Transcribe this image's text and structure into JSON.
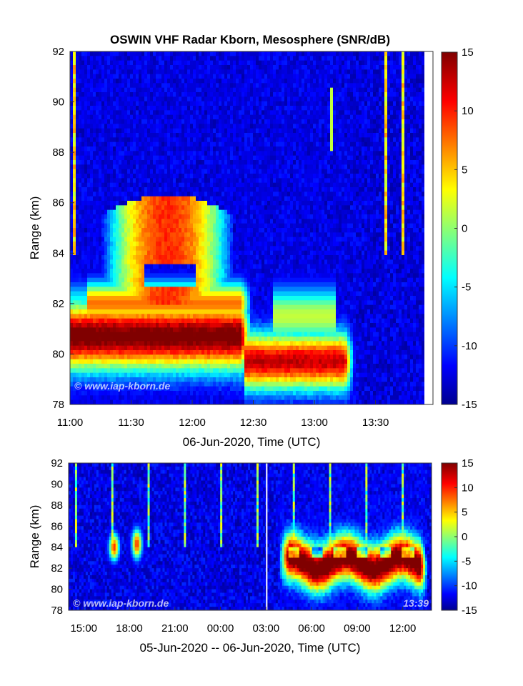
{
  "chart_data": [
    {
      "type": "heatmap",
      "title": "OSWIN VHF Radar Kborn, Mesosphere (SNR/dB)",
      "xlabel": "06-Jun-2020, Time (UTC)",
      "ylabel": "Range (km)",
      "xlim": [
        "11:00",
        "13:54"
      ],
      "ylim": [
        78,
        92
      ],
      "x_ticks": [
        "11:00",
        "11:30",
        "12:00",
        "12:30",
        "13:00",
        "13:30"
      ],
      "y_ticks": [
        78,
        80,
        82,
        84,
        86,
        88,
        90,
        92
      ],
      "colorbar": {
        "label": "SNR/dB",
        "range": [
          -15,
          15
        ],
        "ticks": [
          15,
          10,
          5,
          0,
          -5,
          -10,
          -15
        ],
        "colormap": "jet"
      },
      "watermark": "© www.iap-kborn.de",
      "layers": [
        {
          "name": "lower echo layer",
          "time_start": "11:00",
          "time_end": "12:30",
          "range_km": [
            79.2,
            82.2
          ],
          "peak_snr_db": 15
        },
        {
          "name": "upper echo arc",
          "time_start": "11:18",
          "time_end": "12:18",
          "range_km": [
            82.5,
            86.0
          ],
          "peak_snr_db": 10
        },
        {
          "name": "late echo layer",
          "time_start": "12:30",
          "time_end": "13:20",
          "range_km": [
            78.8,
            81.2
          ],
          "peak_snr_db": 13
        }
      ]
    },
    {
      "type": "heatmap",
      "xlabel": "05-Jun-2020 -- 06-Jun-2020, Time (UTC)",
      "ylabel": "Range (km)",
      "xlim": [
        "05-Jun 14:00",
        "06-Jun 13:54"
      ],
      "ylim": [
        78,
        92
      ],
      "x_ticks": [
        "15:00",
        "18:00",
        "21:00",
        "00:00",
        "03:00",
        "06:00",
        "09:00",
        "12:00"
      ],
      "y_ticks": [
        78,
        80,
        82,
        84,
        86,
        88,
        90,
        92
      ],
      "colorbar": {
        "label": "SNR/dB",
        "range": [
          -15,
          15
        ],
        "ticks": [
          15,
          10,
          5,
          0,
          -5,
          -10,
          -15
        ],
        "colormap": "jet"
      },
      "watermark": "© www.iap-kborn.de",
      "time_stamp": "13:39",
      "layers": [
        {
          "name": "evening echo",
          "time_start": "16:30",
          "time_end": "19:00",
          "range_km": [
            82.5,
            85.5
          ],
          "peak_snr_db": 8
        },
        {
          "name": "morning echo",
          "time_start": "04:00",
          "time_end": "13:30",
          "range_km": [
            79.5,
            85.5
          ],
          "peak_snr_db": 15
        }
      ]
    }
  ]
}
